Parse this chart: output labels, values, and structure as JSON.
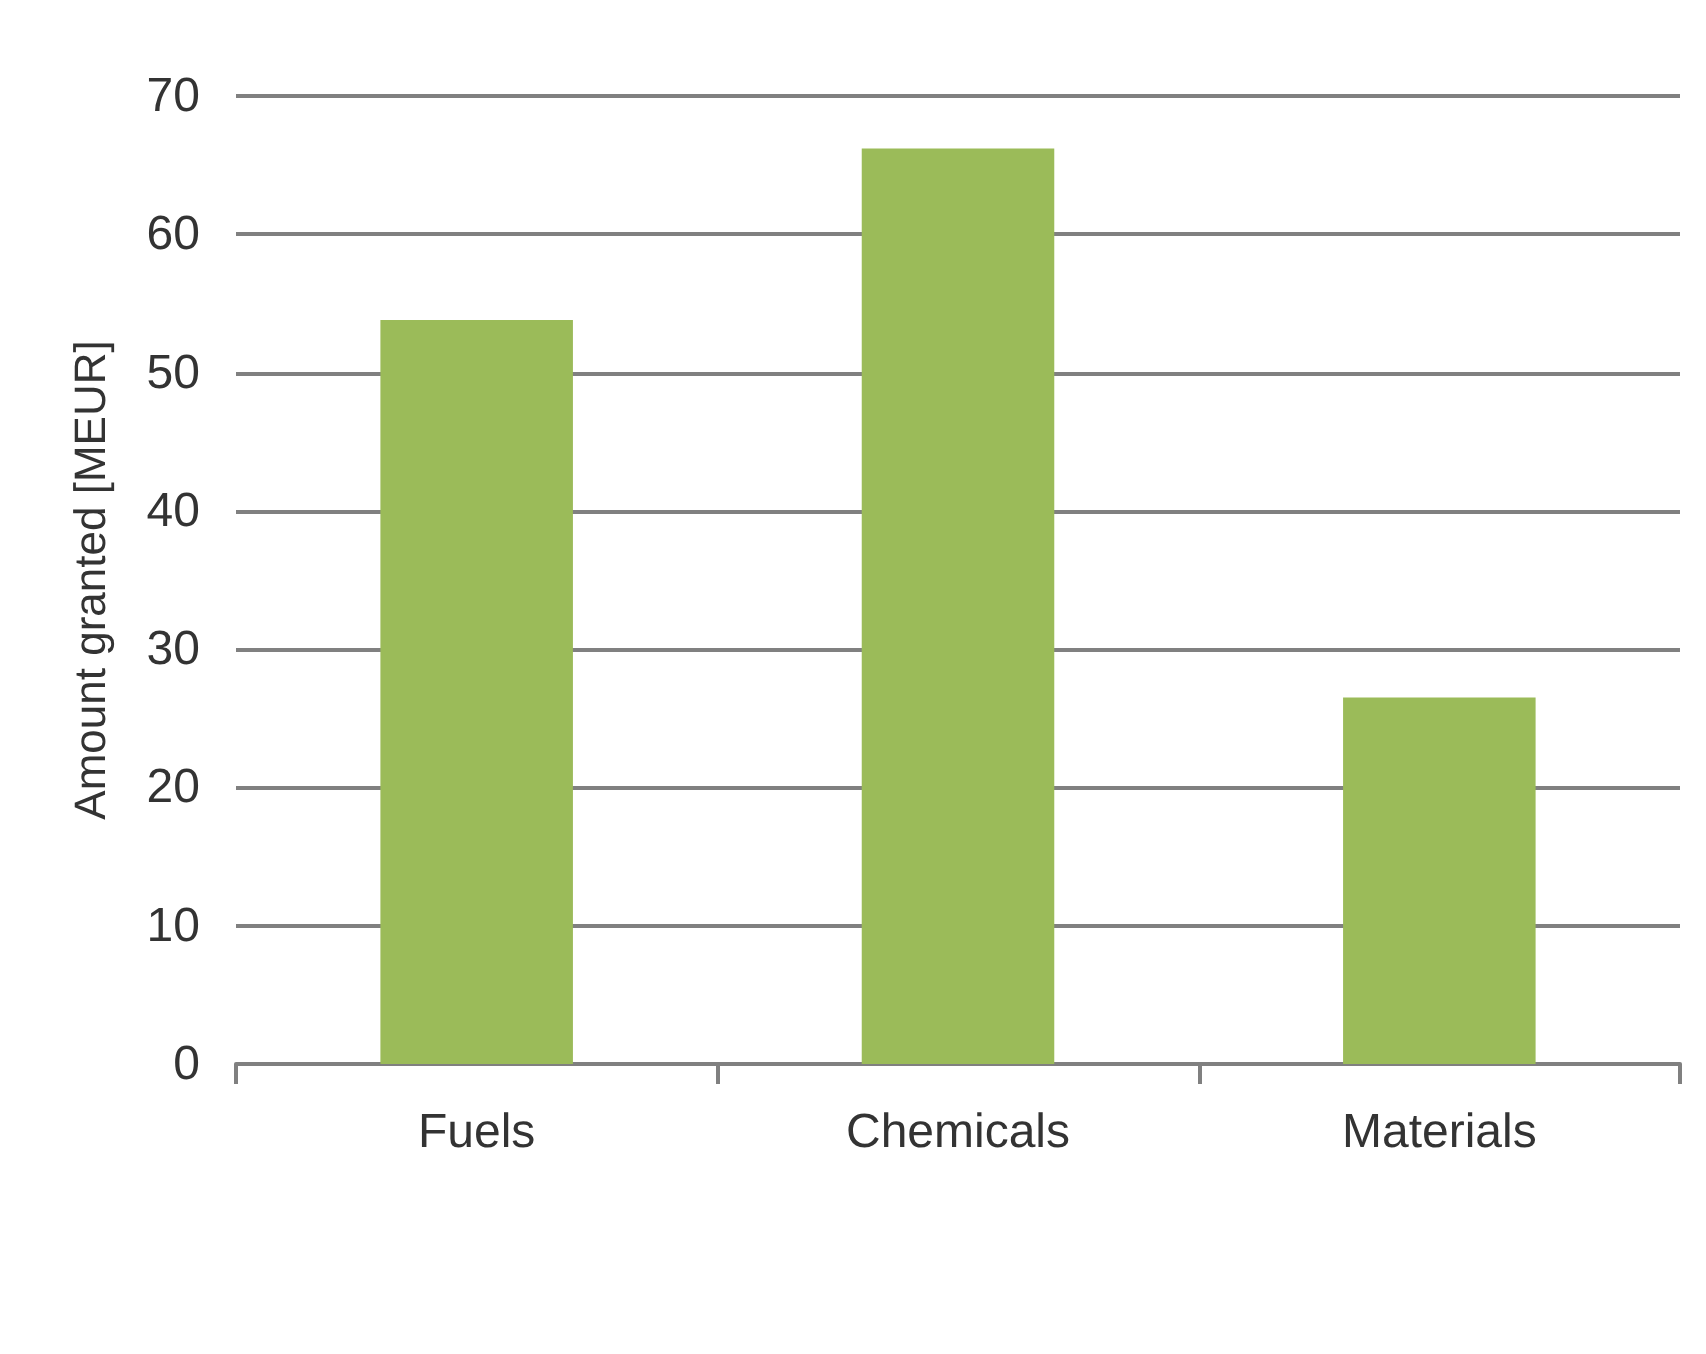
{
  "chart_data": {
    "type": "bar",
    "ylabel": "Amount granted [MEUR]",
    "categories": [
      "Fuels",
      "Chemicals",
      "Materials"
    ],
    "values": [
      53.8,
      66.2,
      26.5
    ],
    "color": "#9bbb59",
    "ylim": [
      0,
      70
    ],
    "yticks": [
      0,
      10,
      20,
      30,
      40,
      50,
      60,
      70
    ],
    "grid": "y"
  }
}
